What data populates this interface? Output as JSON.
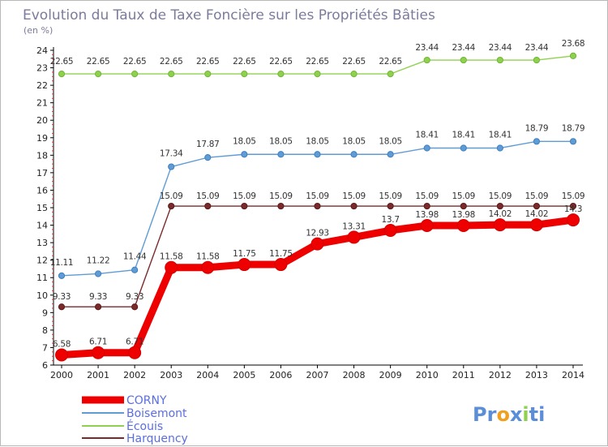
{
  "chart_data": {
    "type": "line",
    "title": "Evolution du Taux de Taxe Foncière sur les Propriétés Bâties",
    "subtitle": "(en %)",
    "xlabel": "",
    "ylabel": "",
    "ylim": [
      6,
      24
    ],
    "yticks": [
      "6",
      "7",
      "8",
      "9",
      "10",
      "11",
      "12",
      "13",
      "14",
      "15",
      "16",
      "17",
      "18",
      "19",
      "20",
      "21",
      "22",
      "23",
      "24"
    ],
    "categories": [
      "2000",
      "2001",
      "2002",
      "2003",
      "2004",
      "2005",
      "2006",
      "2007",
      "2008",
      "2009",
      "2010",
      "2011",
      "2012",
      "2013",
      "2014"
    ],
    "grid": false,
    "legend_position": "bottom-left",
    "series": [
      {
        "name": "CORNY",
        "color": "#ee0000",
        "values": [
          6.58,
          6.71,
          6.71,
          11.58,
          11.58,
          11.75,
          11.75,
          12.93,
          13.31,
          13.7,
          13.98,
          13.98,
          14.02,
          14.02,
          14.3
        ],
        "labels": [
          "6.58",
          "6.71",
          "6.71",
          "11.58",
          "11.58",
          "11.75",
          "11.75",
          "12.93",
          "13.31",
          "13.7",
          "13.98",
          "13.98",
          "14.02",
          "14.02",
          "14.3"
        ]
      },
      {
        "name": "Boisemont",
        "color": "#5f9bd5",
        "values": [
          11.11,
          11.22,
          11.44,
          17.34,
          17.87,
          18.05,
          18.05,
          18.05,
          18.05,
          18.05,
          18.41,
          18.41,
          18.41,
          18.79,
          18.79
        ],
        "labels": [
          "11.11",
          "11.22",
          "11.44",
          "17.34",
          "17.87",
          "18.05",
          "18.05",
          "18.05",
          "18.05",
          "18.05",
          "18.41",
          "18.41",
          "18.41",
          "18.79",
          "18.79"
        ]
      },
      {
        "name": "Écouis",
        "color": "#8fd14f",
        "values": [
          22.65,
          22.65,
          22.65,
          22.65,
          22.65,
          22.65,
          22.65,
          22.65,
          22.65,
          22.65,
          23.44,
          23.44,
          23.44,
          23.44,
          23.68
        ],
        "labels": [
          "22.65",
          "22.65",
          "22.65",
          "22.65",
          "22.65",
          "22.65",
          "22.65",
          "22.65",
          "22.65",
          "22.65",
          "23.44",
          "23.44",
          "23.44",
          "23.44",
          "23.68"
        ]
      },
      {
        "name": "Harquency",
        "color": "#7a2a2a",
        "values": [
          9.33,
          9.33,
          9.33,
          15.09,
          15.09,
          15.09,
          15.09,
          15.09,
          15.09,
          15.09,
          15.09,
          15.09,
          15.09,
          15.09,
          15.09
        ],
        "labels": [
          "9.33",
          "9.33",
          "9.33",
          "15.09",
          "15.09",
          "15.09",
          "15.09",
          "15.09",
          "15.09",
          "15.09",
          "15.09",
          "15.09",
          "15.09",
          "15.09",
          "15.09"
        ]
      }
    ]
  },
  "branding": {
    "logo_parts": [
      "Pr",
      "o",
      "x",
      "i",
      "ti"
    ],
    "logo_colors": [
      "#5b8ed8",
      "#f0a020",
      "#5b8ed8",
      "#8fd14f",
      "#5b8ed8"
    ]
  }
}
